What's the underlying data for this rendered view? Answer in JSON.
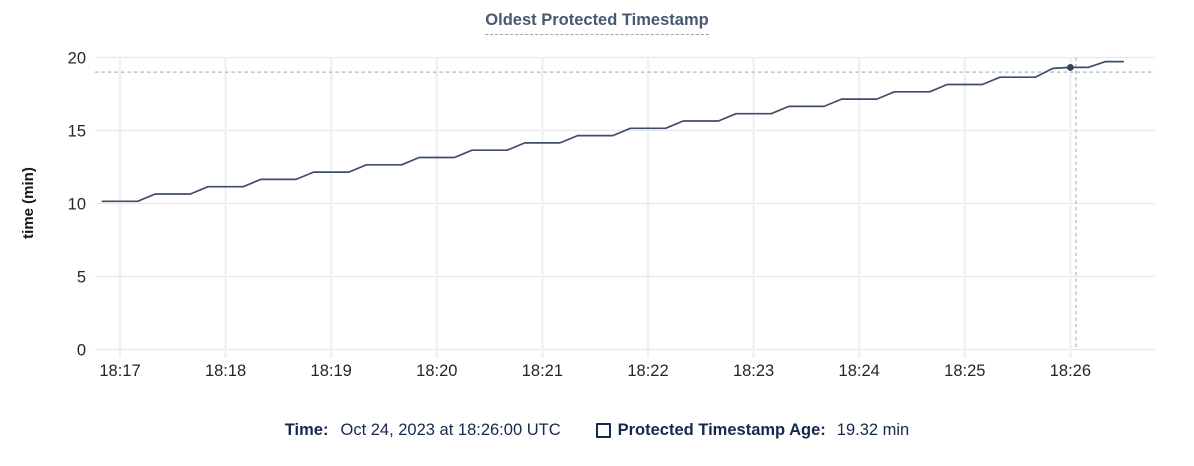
{
  "header": {
    "title": "Oldest Protected Timestamp"
  },
  "tooltip": {
    "time_label": "Time:",
    "time_value": "Oct 24, 2023 at 18:26:00 UTC",
    "series_label": "Protected Timestamp Age:",
    "series_value": "19.32 min",
    "checkbox_icon": "legend-checkbox-unfilled-square"
  },
  "chart_data": {
    "type": "line",
    "title": "Oldest Protected Timestamp",
    "xlabel": "",
    "ylabel": "time (min)",
    "ylim": [
      0,
      20
    ],
    "yticks": [
      0,
      5,
      10,
      15,
      20
    ],
    "xticks": [
      "18:17",
      "18:18",
      "18:19",
      "18:20",
      "18:21",
      "18:22",
      "18:23",
      "18:24",
      "18:25",
      "18:26"
    ],
    "grid": true,
    "legend_position": "bottom",
    "series": [
      {
        "name": "Protected Timestamp Age",
        "x": [
          "18:16:50",
          "18:17:00",
          "18:17:10",
          "18:17:20",
          "18:17:30",
          "18:17:40",
          "18:17:50",
          "18:18:00",
          "18:18:10",
          "18:18:20",
          "18:18:30",
          "18:18:40",
          "18:18:50",
          "18:19:00",
          "18:19:10",
          "18:19:20",
          "18:19:30",
          "18:19:40",
          "18:19:50",
          "18:20:00",
          "18:20:10",
          "18:20:20",
          "18:20:30",
          "18:20:40",
          "18:20:50",
          "18:21:00",
          "18:21:10",
          "18:21:20",
          "18:21:30",
          "18:21:40",
          "18:21:50",
          "18:22:00",
          "18:22:10",
          "18:22:20",
          "18:22:30",
          "18:22:40",
          "18:22:50",
          "18:23:00",
          "18:23:10",
          "18:23:20",
          "18:23:30",
          "18:23:40",
          "18:23:50",
          "18:24:00",
          "18:24:10",
          "18:24:20",
          "18:24:30",
          "18:24:40",
          "18:24:50",
          "18:25:00",
          "18:25:10",
          "18:25:20",
          "18:25:30",
          "18:25:40",
          "18:25:50",
          "18:26:00",
          "18:26:10",
          "18:26:20",
          "18:26:30"
        ],
        "values": [
          10.15,
          10.15,
          10.15,
          10.65,
          10.65,
          10.65,
          11.15,
          11.15,
          11.15,
          11.65,
          11.65,
          11.65,
          12.15,
          12.15,
          12.15,
          12.65,
          12.65,
          12.65,
          13.15,
          13.15,
          13.15,
          13.65,
          13.65,
          13.65,
          14.15,
          14.15,
          14.15,
          14.65,
          14.65,
          14.65,
          15.15,
          15.15,
          15.15,
          15.65,
          15.65,
          15.65,
          16.15,
          16.15,
          16.15,
          16.65,
          16.65,
          16.65,
          17.15,
          17.15,
          17.15,
          17.65,
          17.65,
          17.65,
          18.15,
          18.15,
          18.15,
          18.65,
          18.65,
          18.65,
          19.25,
          19.32,
          19.32,
          19.72,
          19.72
        ]
      }
    ],
    "crosshair": {
      "time": "18:26:00",
      "value": 19.32,
      "hline_value": 19.0
    },
    "colors": {
      "line": "#3e4e68",
      "dot": "#35425c",
      "crosshair": "#a6bac7",
      "grid_horizontal": "#e9e9e9",
      "grid_vertical": "#f0f0f1",
      "title": "#475872",
      "legend_text": "#16294c",
      "axis_text": "#242628"
    }
  }
}
